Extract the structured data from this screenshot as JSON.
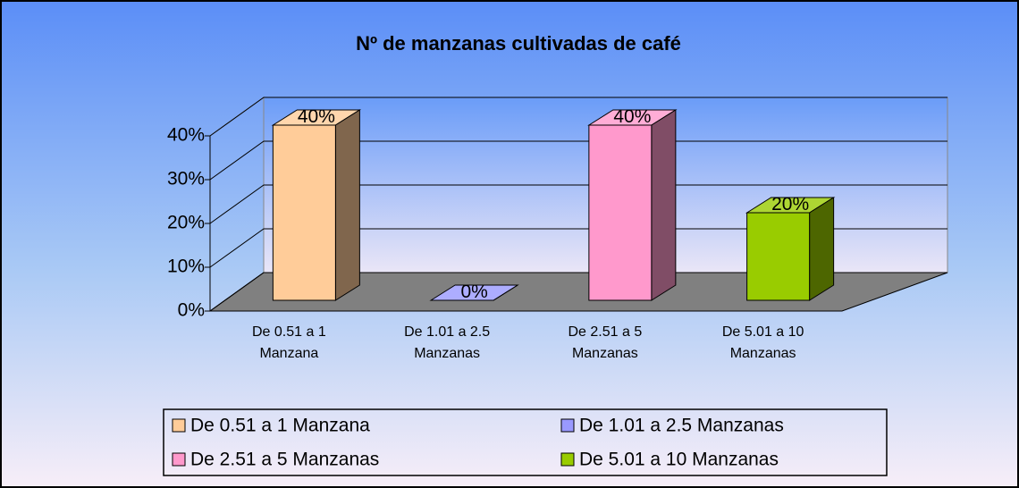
{
  "chart_data": {
    "type": "bar3d",
    "title": "Nº  de manzanas cultivadas de café",
    "categories": [
      "De 0.51 a 1 Manzana",
      "De 1.01 a 2.5 Manzanas",
      "De 2.51 a 5 Manzanas",
      "De 5.01 a 10 Manzanas"
    ],
    "values": [
      40,
      0,
      40,
      20
    ],
    "value_labels": [
      "40%",
      "0%",
      "40%",
      "20%"
    ],
    "colors": [
      "#ffcc99",
      "#9999ff",
      "#ff99cc",
      "#99cc00"
    ],
    "ylim": [
      0,
      40
    ],
    "yticks": [
      {
        "value": 0,
        "label": "0%"
      },
      {
        "value": 10,
        "label": "10%"
      },
      {
        "value": 20,
        "label": "20%"
      },
      {
        "value": 30,
        "label": "30%"
      },
      {
        "value": 40,
        "label": "40%"
      }
    ],
    "grid": true,
    "legend": "bottom"
  }
}
